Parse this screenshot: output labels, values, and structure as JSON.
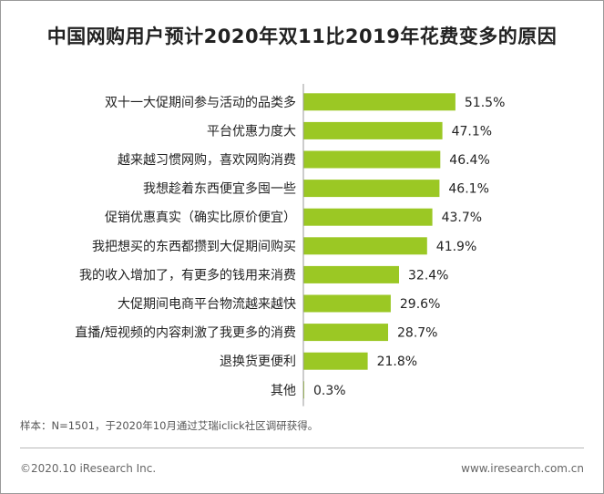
{
  "header": {
    "title": "中国网购用户预计2020年双11比2019年花费变多的原因"
  },
  "chart_data": {
    "type": "bar",
    "orientation": "horizontal",
    "title": "中国网购用户预计2020年双11比2019年花费变多的原因",
    "categories": [
      "双十一大促期间参与活动的品类多",
      "平台优惠力度大",
      "越来越习惯网购，喜欢网购消费",
      "我想趁着东西便宜多囤一些",
      "促销优惠真实（确实比原价便宜）",
      "我把想买的东西都攒到大促期间购买",
      "我的收入增加了，有更多的钱用来消费",
      "大促期间电商平台物流越来越快",
      "直播/短视频的内容刺激了我更多的消费",
      "退换货更便利",
      "其他"
    ],
    "values": [
      51.5,
      47.1,
      46.4,
      46.1,
      43.7,
      41.9,
      32.4,
      29.6,
      28.7,
      21.8,
      0.3
    ],
    "value_labels": [
      "51.5%",
      "47.1%",
      "46.4%",
      "46.1%",
      "43.7%",
      "41.9%",
      "32.4%",
      "29.6%",
      "28.7%",
      "21.8%",
      "0.3%"
    ],
    "unit": "%",
    "xlim": [
      0,
      100
    ],
    "bar_color": "#9bc824",
    "axis_color": "#9a9a9a",
    "grid": false,
    "legend": "none"
  },
  "footer": {
    "source": "样本：N=1501，于2020年10月通过艾瑞iclick社区调研获得。",
    "copyright": "©2020.10 iResearch Inc.",
    "website": "www.iresearch.com.cn"
  }
}
